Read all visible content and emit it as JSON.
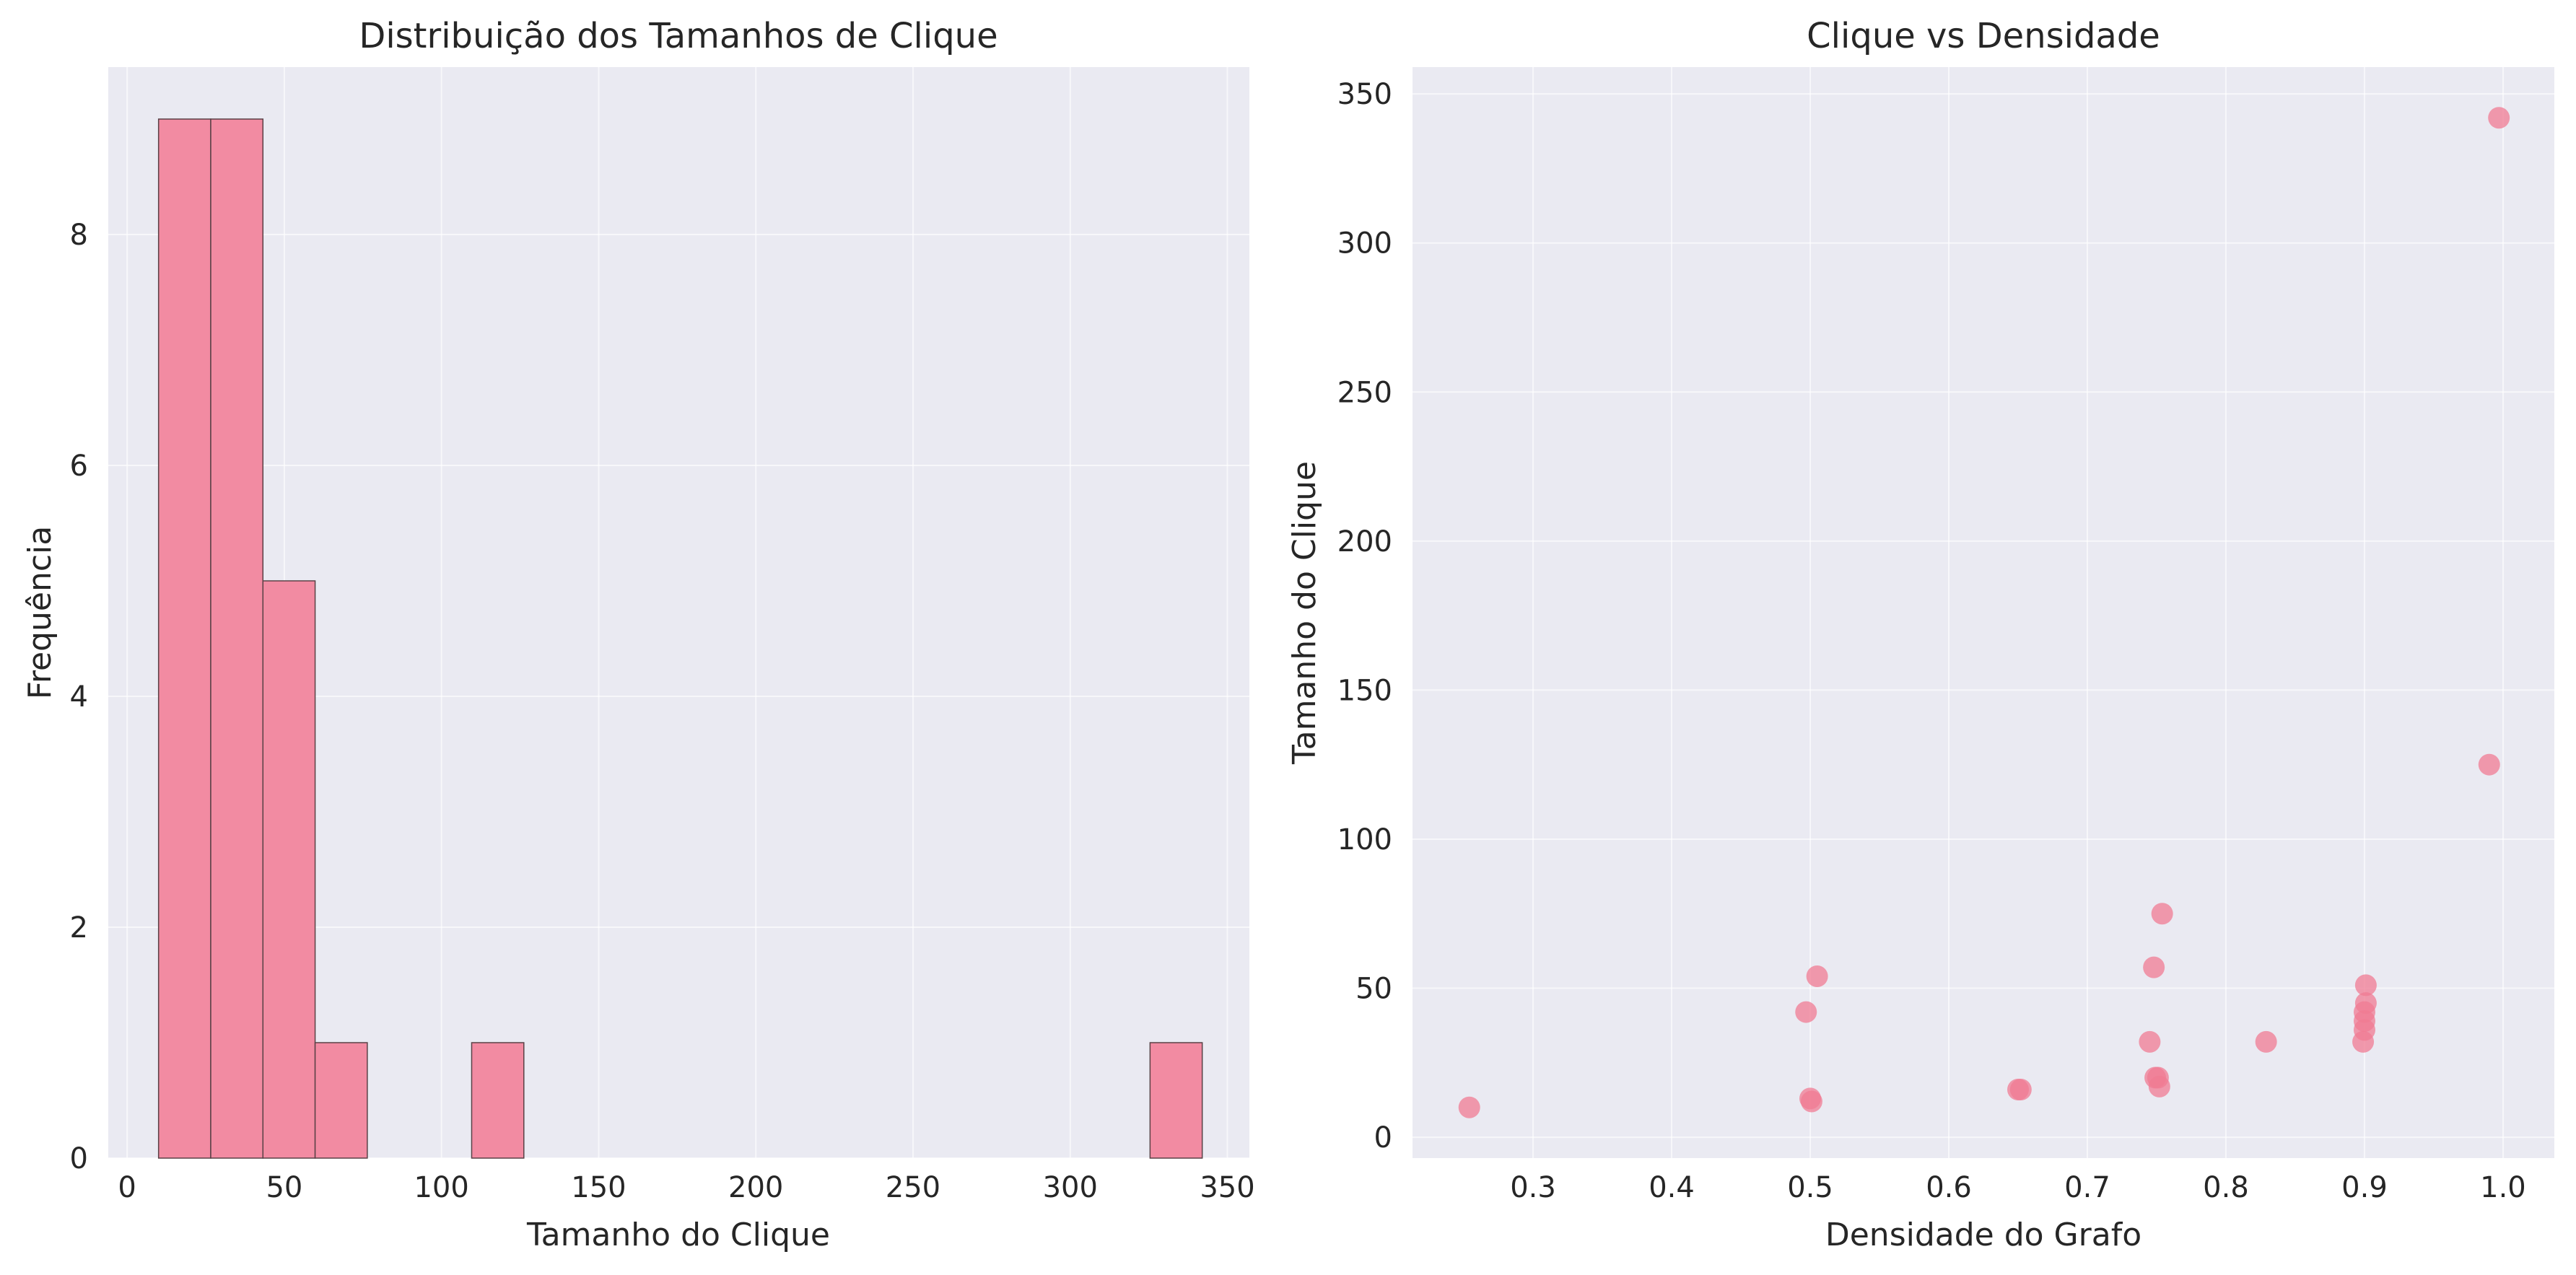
{
  "chart_data": [
    {
      "type": "bar",
      "title": "Distribuição dos Tamanhos de Clique",
      "xlabel": "Tamanho do Clique",
      "ylabel": "Frequência",
      "xlim": [
        -6,
        357
      ],
      "ylim": [
        0,
        9.45
      ],
      "xticks": [
        0,
        50,
        100,
        150,
        200,
        250,
        300,
        350
      ],
      "yticks": [
        0,
        2,
        4,
        6,
        8
      ],
      "grid": true,
      "bins": [
        {
          "x0": 10,
          "x1": 26.6,
          "count": 9
        },
        {
          "x0": 26.6,
          "x1": 43.2,
          "count": 9
        },
        {
          "x0": 43.2,
          "x1": 59.8,
          "count": 5
        },
        {
          "x0": 59.8,
          "x1": 76.4,
          "count": 1
        },
        {
          "x0": 76.4,
          "x1": 93.0,
          "count": 0
        },
        {
          "x0": 93.0,
          "x1": 109.6,
          "count": 0
        },
        {
          "x0": 109.6,
          "x1": 126.2,
          "count": 1
        },
        {
          "x0": 126.2,
          "x1": 142.8,
          "count": 0
        },
        {
          "x0": 142.8,
          "x1": 159.4,
          "count": 0
        },
        {
          "x0": 159.4,
          "x1": 176.0,
          "count": 0
        },
        {
          "x0": 176.0,
          "x1": 192.6,
          "count": 0
        },
        {
          "x0": 192.6,
          "x1": 209.2,
          "count": 0
        },
        {
          "x0": 209.2,
          "x1": 225.8,
          "count": 0
        },
        {
          "x0": 225.8,
          "x1": 242.4,
          "count": 0
        },
        {
          "x0": 242.4,
          "x1": 259.0,
          "count": 0
        },
        {
          "x0": 259.0,
          "x1": 275.6,
          "count": 0
        },
        {
          "x0": 275.6,
          "x1": 292.2,
          "count": 0
        },
        {
          "x0": 292.2,
          "x1": 308.8,
          "count": 0
        },
        {
          "x0": 308.8,
          "x1": 325.4,
          "count": 0
        },
        {
          "x0": 325.4,
          "x1": 342.0,
          "count": 1
        }
      ],
      "color": "#f28ba2"
    },
    {
      "type": "scatter",
      "title": "Clique vs Densidade",
      "xlabel": "Densidade do Grafo",
      "ylabel": "Tamanho do Clique",
      "xlim": [
        0.213,
        1.037
      ],
      "ylim": [
        -7,
        359
      ],
      "xticks": [
        0.3,
        0.4,
        0.5,
        0.6,
        0.7,
        0.8,
        0.9,
        1.0
      ],
      "xtick_labels": [
        "0.3",
        "0.4",
        "0.5",
        "0.6",
        "0.7",
        "0.8",
        "0.9",
        "1.0"
      ],
      "yticks": [
        0,
        50,
        100,
        150,
        200,
        250,
        300,
        350
      ],
      "grid": true,
      "points": [
        {
          "x": 0.254,
          "y": 10
        },
        {
          "x": 0.497,
          "y": 42
        },
        {
          "x": 0.5,
          "y": 13
        },
        {
          "x": 0.501,
          "y": 12
        },
        {
          "x": 0.505,
          "y": 54
        },
        {
          "x": 0.65,
          "y": 16
        },
        {
          "x": 0.652,
          "y": 16
        },
        {
          "x": 0.745,
          "y": 32
        },
        {
          "x": 0.748,
          "y": 57
        },
        {
          "x": 0.749,
          "y": 20
        },
        {
          "x": 0.751,
          "y": 20
        },
        {
          "x": 0.752,
          "y": 17
        },
        {
          "x": 0.754,
          "y": 75
        },
        {
          "x": 0.829,
          "y": 32
        },
        {
          "x": 0.899,
          "y": 32
        },
        {
          "x": 0.9,
          "y": 36
        },
        {
          "x": 0.9,
          "y": 39
        },
        {
          "x": 0.9,
          "y": 42
        },
        {
          "x": 0.901,
          "y": 45
        },
        {
          "x": 0.901,
          "y": 51
        },
        {
          "x": 0.99,
          "y": 125
        },
        {
          "x": 0.997,
          "y": 342
        }
      ],
      "color": "#f07b93"
    }
  ]
}
